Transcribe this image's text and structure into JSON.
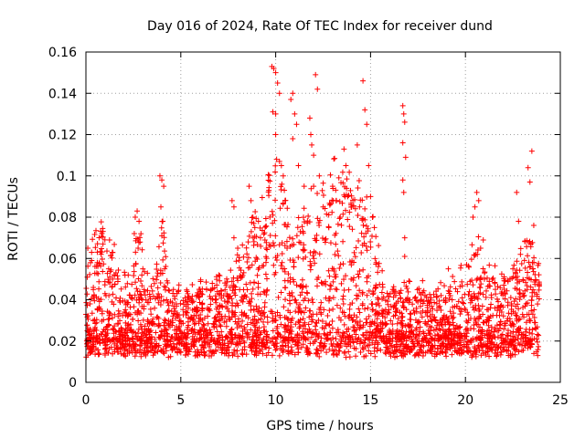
{
  "chart_data": {
    "type": "scatter",
    "title": "Day 016 of 2024, Rate Of TEC Index for receiver dund",
    "xlabel": "GPS time / hours",
    "ylabel": "ROTI / TECUs",
    "xlim": [
      0,
      25
    ],
    "ylim": [
      0,
      0.16
    ],
    "x_ticks": [
      "0",
      "5",
      "10",
      "15",
      "20",
      "25"
    ],
    "y_ticks": [
      "0",
      "0.02",
      "0.04",
      "0.06",
      "0.08",
      "0.1",
      "0.12",
      "0.14",
      "0.16"
    ],
    "grid": true,
    "marker": "+",
    "color": "#ff0000",
    "series": [
      {
        "points": [
          [
            0.1,
            0.065
          ],
          [
            0.3,
            0.063
          ],
          [
            0.6,
            0.058
          ],
          [
            0.8,
            0.062
          ],
          [
            0.9,
            0.067
          ],
          [
            1.0,
            0.069
          ],
          [
            1.2,
            0.055
          ],
          [
            1.4,
            0.05
          ],
          [
            2.6,
            0.08
          ],
          [
            2.7,
            0.083
          ],
          [
            2.8,
            0.078
          ],
          [
            2.9,
            0.072
          ],
          [
            2.75,
            0.065
          ],
          [
            3.0,
            0.055
          ],
          [
            3.9,
            0.1
          ],
          [
            4.0,
            0.098
          ],
          [
            4.1,
            0.095
          ],
          [
            3.95,
            0.085
          ],
          [
            4.05,
            0.078
          ],
          [
            4.0,
            0.071
          ],
          [
            4.15,
            0.055
          ],
          [
            4.2,
            0.046
          ],
          [
            4.25,
            0.04
          ],
          [
            7.0,
            0.052
          ],
          [
            7.6,
            0.046
          ],
          [
            7.8,
            0.07
          ],
          [
            7.7,
            0.088
          ],
          [
            7.8,
            0.085
          ],
          [
            8.0,
            0.065
          ],
          [
            8.6,
            0.095
          ],
          [
            8.7,
            0.088
          ],
          [
            8.8,
            0.08
          ],
          [
            8.9,
            0.075
          ],
          [
            9.2,
            0.07
          ],
          [
            9.5,
            0.065
          ],
          [
            9.8,
            0.153
          ],
          [
            9.9,
            0.152
          ],
          [
            10.0,
            0.15
          ],
          [
            9.85,
            0.131
          ],
          [
            10.0,
            0.13
          ],
          [
            10.1,
            0.145
          ],
          [
            10.2,
            0.14
          ],
          [
            10.0,
            0.12
          ],
          [
            10.05,
            0.108
          ],
          [
            10.2,
            0.107
          ],
          [
            10.3,
            0.105
          ],
          [
            10.4,
            0.1
          ],
          [
            10.8,
            0.137
          ],
          [
            10.9,
            0.14
          ],
          [
            11.0,
            0.13
          ],
          [
            11.1,
            0.125
          ],
          [
            10.9,
            0.118
          ],
          [
            11.2,
            0.105
          ],
          [
            11.5,
            0.095
          ],
          [
            11.8,
            0.128
          ],
          [
            11.85,
            0.12
          ],
          [
            11.9,
            0.115
          ],
          [
            12.0,
            0.11
          ],
          [
            12.1,
            0.149
          ],
          [
            12.2,
            0.142
          ],
          [
            12.3,
            0.1
          ],
          [
            12.0,
            0.095
          ],
          [
            12.5,
            0.085
          ],
          [
            12.8,
            0.075
          ],
          [
            13.0,
            0.095
          ],
          [
            13.2,
            0.088
          ],
          [
            13.4,
            0.08
          ],
          [
            13.6,
            0.113
          ],
          [
            13.7,
            0.105
          ],
          [
            13.8,
            0.09
          ],
          [
            14.0,
            0.085
          ],
          [
            14.3,
            0.115
          ],
          [
            14.6,
            0.146
          ],
          [
            14.7,
            0.132
          ],
          [
            14.8,
            0.125
          ],
          [
            14.9,
            0.105
          ],
          [
            15.0,
            0.09
          ],
          [
            15.1,
            0.08
          ],
          [
            15.2,
            0.075
          ],
          [
            15.3,
            0.058
          ],
          [
            16.7,
            0.134
          ],
          [
            16.75,
            0.13
          ],
          [
            16.8,
            0.126
          ],
          [
            16.7,
            0.116
          ],
          [
            16.85,
            0.109
          ],
          [
            16.7,
            0.098
          ],
          [
            16.75,
            0.092
          ],
          [
            16.8,
            0.07
          ],
          [
            16.8,
            0.061
          ],
          [
            19.1,
            0.055
          ],
          [
            19.3,
            0.04
          ],
          [
            20.4,
            0.08
          ],
          [
            20.5,
            0.085
          ],
          [
            20.6,
            0.092
          ],
          [
            20.7,
            0.088
          ],
          [
            20.8,
            0.065
          ],
          [
            20.55,
            0.062
          ],
          [
            21.0,
            0.05
          ],
          [
            22.5,
            0.055
          ],
          [
            22.7,
            0.092
          ],
          [
            22.8,
            0.078
          ],
          [
            22.9,
            0.062
          ],
          [
            23.3,
            0.104
          ],
          [
            23.4,
            0.097
          ],
          [
            23.5,
            0.112
          ],
          [
            23.6,
            0.076
          ],
          [
            23.45,
            0.067
          ],
          [
            23.55,
            0.055
          ]
        ]
      }
    ]
  }
}
